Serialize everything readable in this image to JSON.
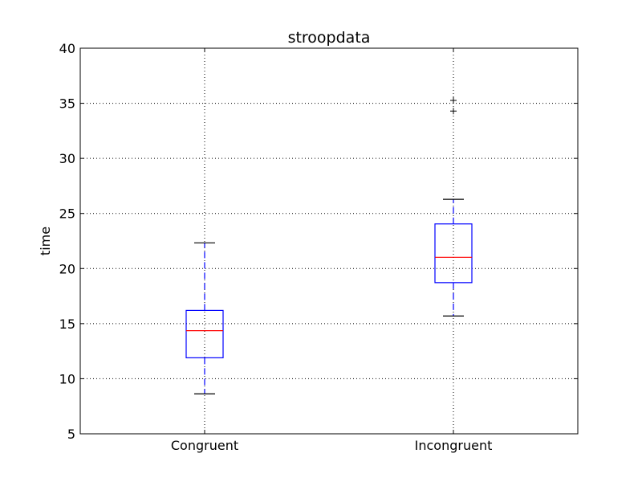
{
  "chart_data": {
    "type": "box",
    "title": "stroopdata",
    "xlabel": "",
    "ylabel": "time",
    "ylim": [
      5,
      40
    ],
    "yticks": [
      "5",
      "10",
      "15",
      "20",
      "25",
      "30",
      "35",
      "40"
    ],
    "grid": true,
    "categories": [
      "Congruent",
      "Incongruent"
    ],
    "boxes": [
      {
        "name": "Congruent",
        "whisker_low": 8.63,
        "q1": 11.9,
        "median": 14.36,
        "q3": 16.2,
        "whisker_high": 22.33,
        "outliers": []
      },
      {
        "name": "Incongruent",
        "whisker_low": 15.69,
        "q1": 18.72,
        "median": 21.02,
        "q3": 24.05,
        "whisker_high": 26.28,
        "outliers": [
          34.29,
          35.26
        ]
      }
    ],
    "colors": {
      "box": "#0000ff",
      "median": "#ff0000",
      "whisker": "#0000ff",
      "cap": "#000000",
      "flier": "#000000",
      "grid": "#000000",
      "axes": "#000000"
    }
  }
}
